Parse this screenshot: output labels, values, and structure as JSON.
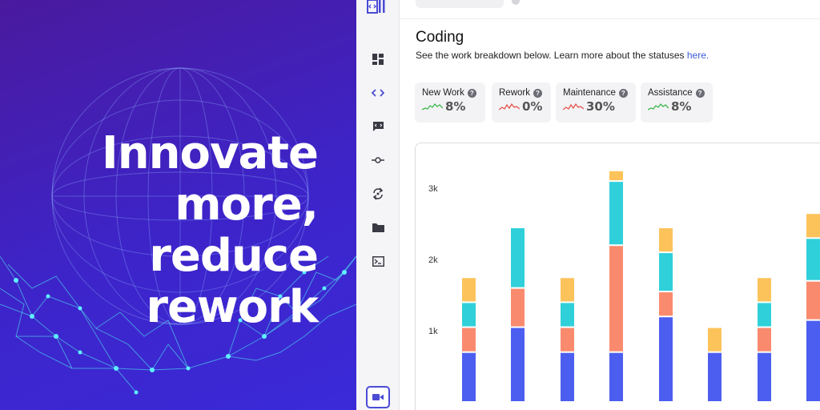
{
  "promo": {
    "headline_line1": "Innovate",
    "headline_line2": "more, reduce",
    "headline_line3": "rework"
  },
  "sidebar": {
    "items": [
      {
        "name": "dashboard-icon"
      },
      {
        "name": "code-icon",
        "active": true
      },
      {
        "name": "review-comment-icon"
      },
      {
        "name": "commit-icon"
      },
      {
        "name": "sync-icon"
      },
      {
        "name": "folder-icon"
      },
      {
        "name": "terminal-icon"
      }
    ],
    "bottom": {
      "name": "video-icon"
    }
  },
  "main": {
    "title": "Coding",
    "subtitle_text": "See the work breakdown below. Learn more about the statuses ",
    "subtitle_link": "here."
  },
  "stats": [
    {
      "label": "New Work",
      "value": "8%",
      "trend_color": "#3fb950"
    },
    {
      "label": "Rework",
      "value": "0%",
      "trend_color": "#e5534b"
    },
    {
      "label": "Maintenance",
      "value": "30%",
      "trend_color": "#e5534b"
    },
    {
      "label": "Assistance",
      "value": "8%",
      "trend_color": "#3fb950"
    }
  ],
  "colors": {
    "accent": "#4b4bd6",
    "new_work": "#4c5ef0",
    "rework": "#fa8a6e",
    "maintenance": "#2fd0da",
    "assistance": "#fcc35b"
  },
  "chart_data": {
    "type": "bar",
    "stacked": true,
    "y_ticks": [
      "1k",
      "2k",
      "3k"
    ],
    "series": [
      {
        "color": "#4c5ef0",
        "values": [
          700,
          1050,
          700,
          700,
          1200,
          700,
          700,
          1150
        ]
      },
      {
        "color": "#fa8a6e",
        "values": [
          350,
          550,
          350,
          1500,
          350,
          0,
          350,
          550
        ]
      },
      {
        "color": "#2fd0da",
        "values": [
          350,
          850,
          350,
          900,
          550,
          0,
          350,
          600
        ]
      },
      {
        "color": "#fcc35b",
        "values": [
          350,
          0,
          350,
          150,
          350,
          350,
          350,
          350
        ]
      }
    ]
  }
}
